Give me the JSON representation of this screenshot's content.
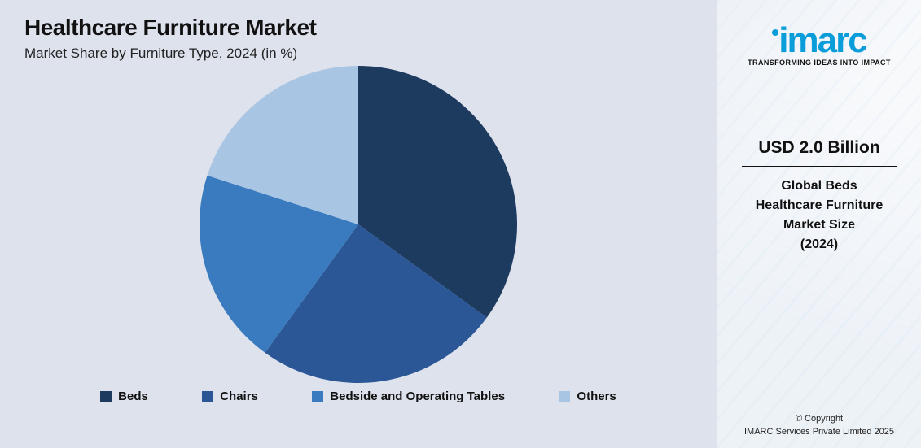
{
  "header": {
    "title": "Healthcare Furniture Market",
    "subtitle": "Market Share by Furniture Type, 2024 (in %)"
  },
  "chart": {
    "type": "pie",
    "background_color": "#dde2ec",
    "radius": 195,
    "start_angle_deg": 0,
    "slices": [
      {
        "label": "Beds",
        "value": 35,
        "color": "#1d3a5f"
      },
      {
        "label": "Chairs",
        "value": 25,
        "color": "#2b5797"
      },
      {
        "label": "Bedside and Operating Tables",
        "value": 20,
        "color": "#3a7bbf"
      },
      {
        "label": "Others",
        "value": 20,
        "color": "#a9c5e4"
      }
    ]
  },
  "legend": {
    "items": [
      {
        "label": "Beds",
        "color": "#1d3a5f"
      },
      {
        "label": "Chairs",
        "color": "#2b5797"
      },
      {
        "label": "Bedside and Operating Tables",
        "color": "#3a7bbf"
      },
      {
        "label": "Others",
        "color": "#a9c5e4"
      }
    ],
    "swatch_size": 14,
    "font_size": 15,
    "font_weight": 600
  },
  "sidebar": {
    "logo": {
      "text": "imarc",
      "color": "#0a9dd9",
      "tagline": "TRANSFORMING IDEAS INTO IMPACT"
    },
    "stat": {
      "value": "USD 2.0 Billion",
      "desc_line1": "Global Beds",
      "desc_line2": "Healthcare Furniture",
      "desc_line3": "Market Size",
      "desc_line4": "(2024)"
    },
    "copyright_line1": "© Copyright",
    "copyright_line2": "IMARC Services Private Limited 2025"
  }
}
